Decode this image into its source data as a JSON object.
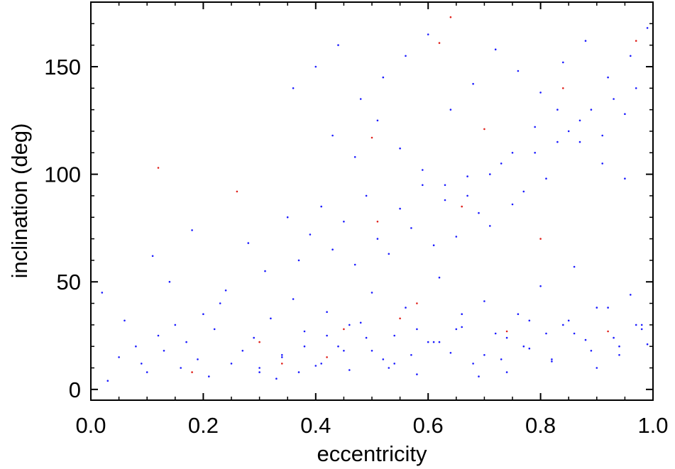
{
  "chart_data": {
    "type": "scatter",
    "xlabel": "eccentricity",
    "ylabel": "inclination (deg)",
    "xlim": [
      0.0,
      1.0
    ],
    "ylim": [
      -5,
      180
    ],
    "xticks": [
      "0.0",
      "0.2",
      "0.4",
      "0.6",
      "0.8",
      "1.0"
    ],
    "yticks": [
      "0",
      "50",
      "100",
      "150"
    ],
    "grid": false,
    "legend": "none",
    "colors": {
      "series_main": "#1a1aff",
      "series_minor": "#e0201a",
      "axes": "#000000"
    },
    "series": [
      {
        "color": "#1a1aff",
        "x": [
          0.03,
          0.05,
          0.08,
          0.09,
          0.1,
          0.12,
          0.13,
          0.15,
          0.16,
          0.17,
          0.19,
          0.2,
          0.21,
          0.22,
          0.23,
          0.25,
          0.27,
          0.29,
          0.3,
          0.32,
          0.34,
          0.36,
          0.38,
          0.4,
          0.42,
          0.44,
          0.46,
          0.48,
          0.5,
          0.52,
          0.54,
          0.56,
          0.58,
          0.6,
          0.62,
          0.64,
          0.66,
          0.68,
          0.7,
          0.72,
          0.74,
          0.76,
          0.78,
          0.8,
          0.82,
          0.84,
          0.86,
          0.88,
          0.9,
          0.92,
          0.94,
          0.96,
          0.98,
          0.99,
          0.02,
          0.06,
          0.11,
          0.14,
          0.18,
          0.24,
          0.28,
          0.31,
          0.35,
          0.37,
          0.39,
          0.41,
          0.43,
          0.45,
          0.47,
          0.49,
          0.51,
          0.53,
          0.55,
          0.57,
          0.59,
          0.61,
          0.63,
          0.65,
          0.67,
          0.69,
          0.71,
          0.73,
          0.75,
          0.77,
          0.79,
          0.81,
          0.83,
          0.85,
          0.87,
          0.89,
          0.91,
          0.93,
          0.95,
          0.97,
          0.3,
          0.34,
          0.38,
          0.42,
          0.46,
          0.5,
          0.54,
          0.58,
          0.62,
          0.66,
          0.7,
          0.74,
          0.78,
          0.82,
          0.86,
          0.9,
          0.94,
          0.98,
          0.33,
          0.37,
          0.41,
          0.45,
          0.49,
          0.53,
          0.57,
          0.61,
          0.65,
          0.69,
          0.73,
          0.77,
          0.81,
          0.85,
          0.89,
          0.93,
          0.97,
          0.36,
          0.4,
          0.44,
          0.48,
          0.52,
          0.56,
          0.6,
          0.64,
          0.68,
          0.72,
          0.76,
          0.8,
          0.84,
          0.88,
          0.92,
          0.96,
          0.99,
          0.43,
          0.47,
          0.51,
          0.55,
          0.59,
          0.63,
          0.67,
          0.71,
          0.75,
          0.79,
          0.83,
          0.87,
          0.91,
          0.95
        ],
        "y": [
          4,
          15,
          20,
          12,
          8,
          25,
          18,
          30,
          10,
          22,
          14,
          35,
          6,
          28,
          40,
          12,
          18,
          24,
          8,
          33,
          16,
          42,
          27,
          11,
          36,
          20,
          9,
          31,
          45,
          14,
          25,
          38,
          7,
          22,
          52,
          17,
          29,
          12,
          41,
          26,
          8,
          35,
          19,
          48,
          13,
          30,
          57,
          23,
          10,
          38,
          16,
          44,
          28,
          21,
          45,
          32,
          62,
          50,
          74,
          46,
          68,
          55,
          80,
          60,
          72,
          85,
          65,
          78,
          58,
          90,
          70,
          63,
          84,
          75,
          95,
          67,
          88,
          71,
          99,
          82,
          76,
          105,
          86,
          92,
          110,
          98,
          115,
          120,
          125,
          130,
          118,
          135,
          128,
          140,
          10,
          15,
          20,
          25,
          30,
          18,
          12,
          28,
          22,
          35,
          16,
          24,
          32,
          14,
          26,
          38,
          20,
          30,
          5,
          8,
          12,
          18,
          24,
          10,
          16,
          22,
          28,
          6,
          14,
          20,
          26,
          32,
          18,
          24,
          30,
          140,
          150,
          160,
          135,
          145,
          155,
          165,
          130,
          142,
          158,
          148,
          138,
          152,
          162,
          145,
          155,
          168,
          118,
          108,
          125,
          112,
          102,
          95,
          90,
          100,
          110,
          122,
          130,
          115,
          105,
          98
        ]
      },
      {
        "color": "#e0201a",
        "x": [
          0.12,
          0.26,
          0.34,
          0.42,
          0.45,
          0.5,
          0.51,
          0.55,
          0.62,
          0.64,
          0.66,
          0.7,
          0.74,
          0.8,
          0.84,
          0.92,
          0.97,
          0.18,
          0.3,
          0.58
        ],
        "y": [
          103,
          92,
          12,
          15,
          28,
          117,
          78,
          33,
          161,
          173,
          85,
          121,
          27,
          70,
          140,
          27,
          162,
          8,
          22,
          40
        ]
      }
    ]
  }
}
